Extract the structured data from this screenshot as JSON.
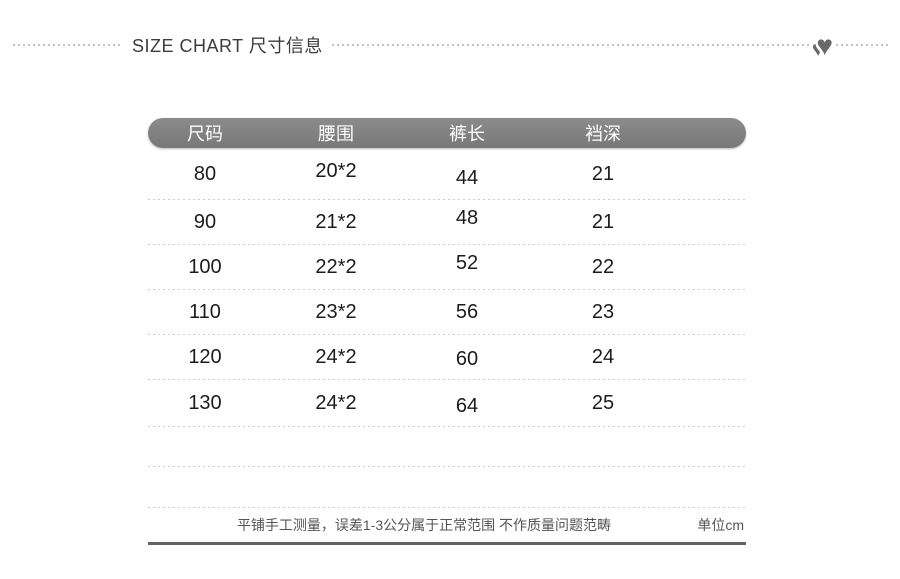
{
  "header": {
    "title": "SIZE CHART 尺寸信息",
    "hearts_icon_glyph": "♥"
  },
  "chart_data": {
    "type": "table",
    "title": "SIZE CHART 尺寸信息",
    "columns": [
      "尺码",
      "腰围",
      "裤长",
      "裆深"
    ],
    "rows": [
      [
        "80",
        "20*2",
        "44",
        "21"
      ],
      [
        "90",
        "21*2",
        "48",
        "21"
      ],
      [
        "100",
        "22*2",
        "52",
        "22"
      ],
      [
        "110",
        "23*2",
        "56",
        "23"
      ],
      [
        "120",
        "24*2",
        "60",
        "24"
      ],
      [
        "130",
        "24*2",
        "64",
        "25"
      ]
    ],
    "note": "平铺手工测量，误差1-3公分属于正常范围 不作质量问题范畴",
    "unit": "cm",
    "unit_label": "单位cm",
    "layout": {
      "header_bar_color": "#7d7d7d",
      "header_text_color": "#ffffff",
      "separator_style": "dotted"
    }
  },
  "colors": {
    "header_bar": "#7d7d7d",
    "title_text": "#3c3c3c",
    "data_text": "#1c1c1c",
    "note_text": "#555555",
    "dotted_rule": "#c2c2c2",
    "hearts": "#696969",
    "bottom_rule": "#636363"
  }
}
